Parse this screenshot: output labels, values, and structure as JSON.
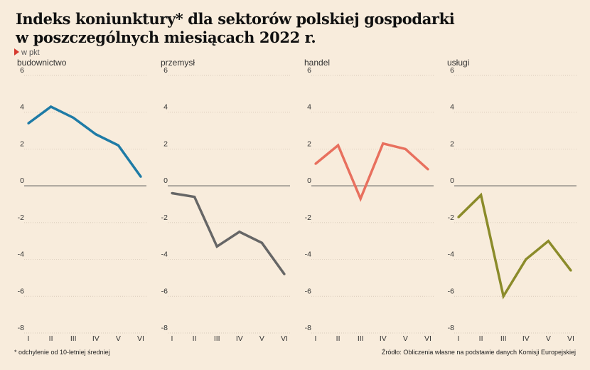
{
  "title_line1": "Indeks koniunktury* dla sektorów polskiej gospodarki",
  "title_line2": "w poszczególnych miesiącach 2022 r.",
  "unit_label": "w pkt",
  "footnote": "* odchylenie od 10-letniej średniej",
  "source": "Źródło: Obliczenia własne na podstawie danych Komisji Europejskiej",
  "chart_data": [
    {
      "type": "line",
      "title": "budownictwo",
      "categories": [
        "I",
        "II",
        "III",
        "IV",
        "V",
        "VI"
      ],
      "values": [
        3.4,
        4.3,
        3.7,
        2.8,
        2.2,
        0.5
      ],
      "ylim": [
        -8,
        6
      ],
      "yticks": [
        6,
        4,
        2,
        0,
        -2,
        -4,
        -6,
        -8
      ],
      "color": "#1e7ba6"
    },
    {
      "type": "line",
      "title": "przemysł",
      "categories": [
        "I",
        "II",
        "III",
        "IV",
        "V",
        "VI"
      ],
      "values": [
        -0.4,
        -0.6,
        -3.3,
        -2.5,
        -3.1,
        -4.8
      ],
      "ylim": [
        -8,
        6
      ],
      "yticks": [
        6,
        4,
        2,
        0,
        -2,
        -4,
        -6,
        -8
      ],
      "color": "#666666"
    },
    {
      "type": "line",
      "title": "handel",
      "categories": [
        "I",
        "II",
        "III",
        "IV",
        "V",
        "VI"
      ],
      "values": [
        1.2,
        2.2,
        -0.7,
        2.3,
        2.0,
        0.9
      ],
      "ylim": [
        -8,
        6
      ],
      "yticks": [
        6,
        4,
        2,
        0,
        -2,
        -4,
        -6,
        -8
      ],
      "color": "#e8705e"
    },
    {
      "type": "line",
      "title": "usługi",
      "categories": [
        "I",
        "II",
        "III",
        "IV",
        "V",
        "VI"
      ],
      "values": [
        -1.7,
        -0.5,
        -6.0,
        -4.0,
        -3.0,
        -4.6
      ],
      "ylim": [
        -8,
        6
      ],
      "yticks": [
        6,
        4,
        2,
        0,
        -2,
        -4,
        -6,
        -8
      ],
      "color": "#8b8b2a"
    }
  ]
}
